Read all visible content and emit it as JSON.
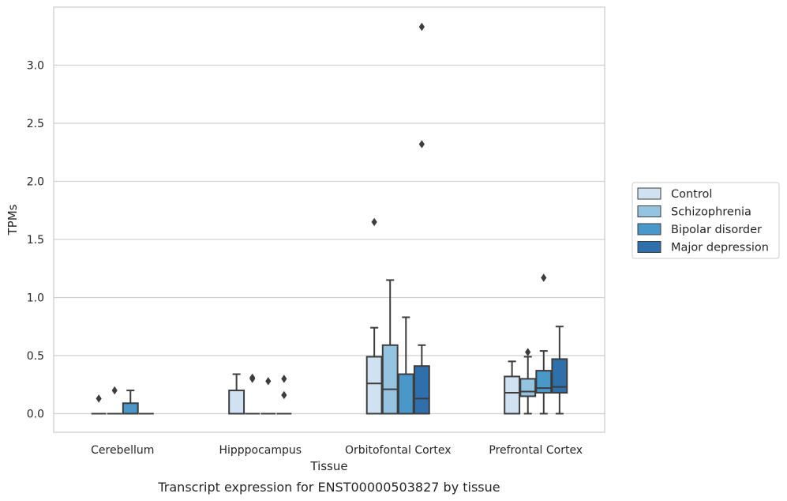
{
  "chart_data": {
    "type": "boxplot",
    "xlabel": "Tissue",
    "ylabel": "TPMs",
    "caption": "Transcript expression for ENST00000503827 by tissue",
    "ylim": [
      -0.16,
      3.5
    ],
    "yticks": [
      "0.0",
      "0.5",
      "1.0",
      "1.5",
      "2.0",
      "2.5",
      "3.0"
    ],
    "grid": "horizontal",
    "legend_position": "right",
    "categories": [
      "Cerebellum",
      "Hipppocampus",
      "Orbitofontal Cortex",
      "Prefrontal Cortex"
    ],
    "series": [
      {
        "name": "Control",
        "color": "#d0e1f2",
        "boxes": [
          {
            "q1": 0,
            "median": 0,
            "q3": 0,
            "whislo": 0,
            "whishi": 0,
            "fliers": [
              0.13
            ]
          },
          {
            "q1": 0,
            "median": 0,
            "q3": 0.2,
            "whislo": 0,
            "whishi": 0.34,
            "fliers": []
          },
          {
            "q1": 0,
            "median": 0.26,
            "q3": 0.49,
            "whislo": 0,
            "whishi": 0.74,
            "fliers": [
              1.65
            ]
          },
          {
            "q1": 0,
            "median": 0.18,
            "q3": 0.32,
            "whislo": 0,
            "whishi": 0.45,
            "fliers": []
          }
        ]
      },
      {
        "name": "Schizophrenia",
        "color": "#94c4df",
        "boxes": [
          {
            "q1": 0,
            "median": 0,
            "q3": 0,
            "whislo": 0,
            "whishi": 0,
            "fliers": [
              0.2
            ]
          },
          {
            "q1": 0,
            "median": 0,
            "q3": 0,
            "whislo": 0,
            "whishi": 0,
            "fliers": [
              0.3,
              0.31
            ]
          },
          {
            "q1": 0,
            "median": 0.21,
            "q3": 0.59,
            "whislo": 0,
            "whishi": 1.15,
            "fliers": []
          },
          {
            "q1": 0.15,
            "median": 0.19,
            "q3": 0.3,
            "whislo": 0,
            "whishi": 0.49,
            "fliers": [
              0.53
            ]
          }
        ]
      },
      {
        "name": "Bipolar disorder",
        "color": "#4a98c9",
        "boxes": [
          {
            "q1": 0,
            "median": 0,
            "q3": 0.09,
            "whislo": 0,
            "whishi": 0.2,
            "fliers": []
          },
          {
            "q1": 0,
            "median": 0,
            "q3": 0,
            "whislo": 0,
            "whishi": 0,
            "fliers": [
              0.28
            ]
          },
          {
            "q1": 0,
            "median": 0,
            "q3": 0.34,
            "whislo": 0,
            "whishi": 0.83,
            "fliers": []
          },
          {
            "q1": 0.18,
            "median": 0.22,
            "q3": 0.37,
            "whislo": 0,
            "whishi": 0.54,
            "fliers": [
              1.17
            ]
          }
        ]
      },
      {
        "name": "Major depression",
        "color": "#2e6fac",
        "boxes": [
          {
            "q1": 0,
            "median": 0,
            "q3": 0,
            "whislo": 0,
            "whishi": 0,
            "fliers": []
          },
          {
            "q1": 0,
            "median": 0,
            "q3": 0,
            "whislo": 0,
            "whishi": 0,
            "fliers": [
              0.16,
              0.3
            ]
          },
          {
            "q1": 0,
            "median": 0.13,
            "q3": 0.41,
            "whislo": 0,
            "whishi": 0.59,
            "fliers": [
              2.32,
              3.33
            ]
          },
          {
            "q1": 0.18,
            "median": 0.23,
            "q3": 0.47,
            "whislo": 0,
            "whishi": 0.75,
            "fliers": []
          }
        ]
      }
    ]
  }
}
